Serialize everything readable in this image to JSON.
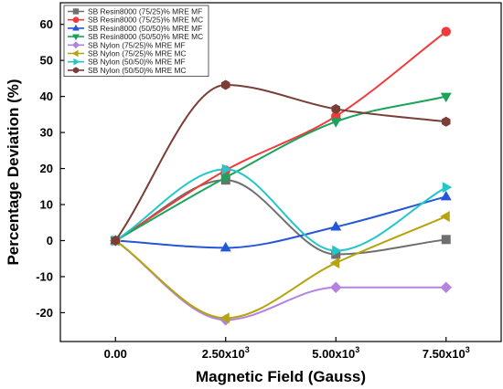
{
  "chart_data": {
    "type": "line",
    "xlabel": "Magnetic Field (Gauss)",
    "ylabel": "Percentage Deviation (%)",
    "x": [
      0,
      2500,
      5000,
      7500
    ],
    "x_tick_labels": [
      {
        "mant": "0.00",
        "exp": ""
      },
      {
        "mant": "2.50x10",
        "exp": "3"
      },
      {
        "mant": "5.00x10",
        "exp": "3"
      },
      {
        "mant": "7.50x10",
        "exp": "3"
      }
    ],
    "xlim": [
      -1250,
      8750
    ],
    "ylim": [
      -28,
      66
    ],
    "yticks": [
      -20,
      -10,
      0,
      10,
      20,
      30,
      40,
      50,
      60
    ],
    "legend_position": "top-left",
    "series": [
      {
        "name": "SB Resin8000 (75/25)% MRE MF",
        "color": "#6f6f6f",
        "marker": "square",
        "values": [
          0,
          16.8,
          -3.8,
          0.3
        ]
      },
      {
        "name": "SB Resin8000 (75/25)% MRE MC",
        "color": "#f13b3b",
        "marker": "circle",
        "values": [
          0,
          19.5,
          34.5,
          58.0
        ]
      },
      {
        "name": "SB Resin8000 (50/50)% MRE MF",
        "color": "#2456d8",
        "marker": "triangle-up",
        "values": [
          0,
          -2.0,
          3.8,
          12.2
        ]
      },
      {
        "name": "SB Resin8000 (50/50)% MRE MC",
        "color": "#1aa35a",
        "marker": "triangle-down",
        "values": [
          0,
          17.5,
          33.0,
          40.0
        ]
      },
      {
        "name": "SB Nylon (75/25)% MRE MF",
        "color": "#b483de",
        "marker": "diamond",
        "values": [
          0,
          -22.0,
          -13.0,
          -13.0
        ]
      },
      {
        "name": "SB Nylon (75/25)% MRE MC",
        "color": "#b5a40e",
        "marker": "triangle-left",
        "values": [
          0,
          -21.5,
          -6.2,
          6.7
        ]
      },
      {
        "name": "SB Nylon (50/50)% MRE MF",
        "color": "#23c7c9",
        "marker": "triangle-right",
        "values": [
          0,
          19.8,
          -2.8,
          14.8
        ]
      },
      {
        "name": "SB Nylon (50/50)% MRE MC",
        "color": "#7a3e36",
        "marker": "hexagon",
        "values": [
          0,
          43.2,
          36.5,
          33.0
        ]
      }
    ]
  }
}
